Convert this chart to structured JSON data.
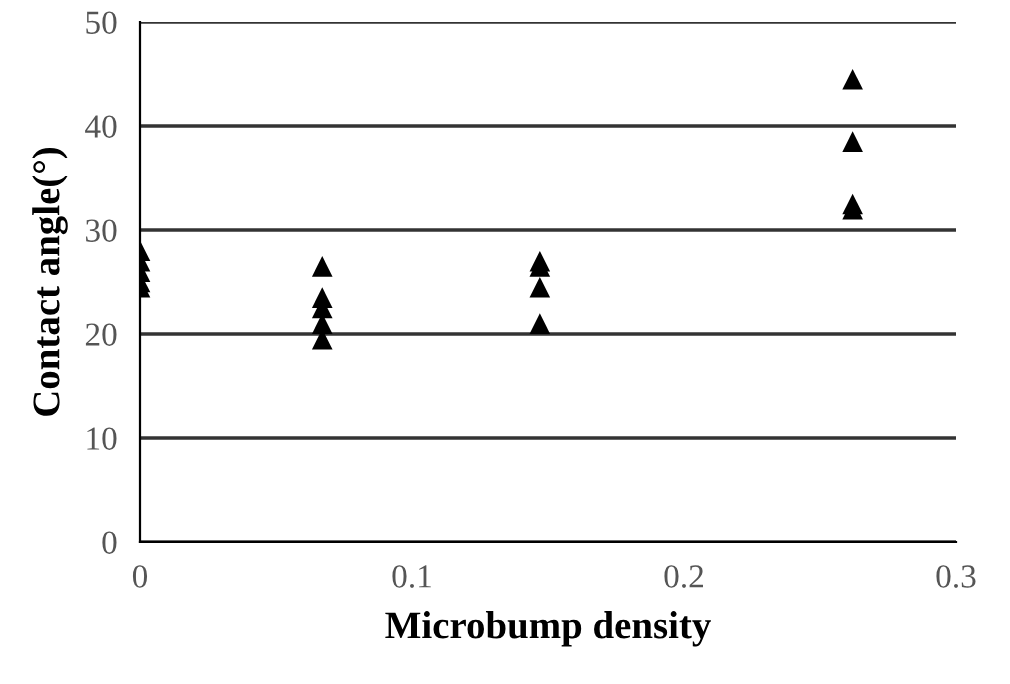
{
  "chart_data": {
    "type": "scatter",
    "xlabel": "Microbump density",
    "ylabel": "Contact angle(°)",
    "series": [
      {
        "color": "#000000",
        "x": [
          0,
          0,
          0,
          0,
          0,
          0.067,
          0.067,
          0.067,
          0.067,
          0.067,
          0.147,
          0.147,
          0.147,
          0.147,
          0.262,
          0.262,
          0.262,
          0.262
        ],
        "values": [
          28,
          27,
          26,
          25,
          24.5,
          26.5,
          23.5,
          22.5,
          21,
          19.5,
          27,
          26.5,
          24.5,
          21,
          44.5,
          38.5,
          32.5,
          32
        ]
      }
    ],
    "marker": "triangle",
    "xlim": [
      0,
      0.3
    ],
    "xticks": [
      0,
      0.1,
      0.2,
      0.3
    ],
    "ylim": [
      0,
      50
    ],
    "yticks": [
      0,
      10,
      20,
      30,
      40,
      50
    ],
    "grid": "y"
  }
}
